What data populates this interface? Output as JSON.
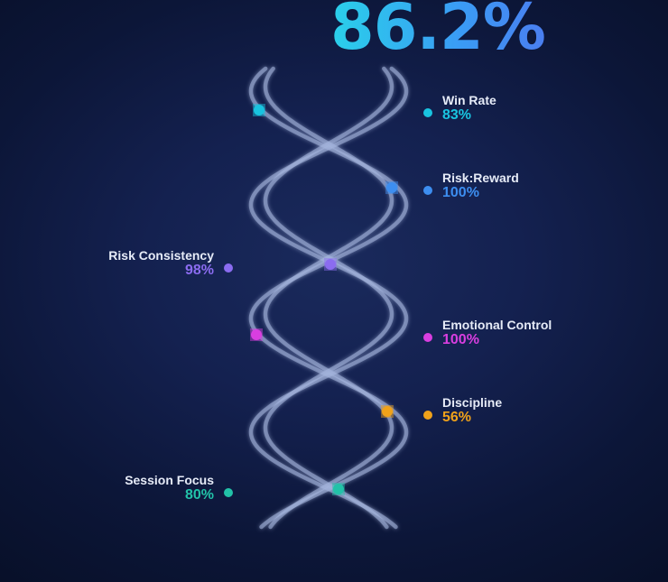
{
  "score": "86.2%",
  "metrics": [
    {
      "name": "Win Rate",
      "value": "83%",
      "color": "#19c4e0",
      "side": "right"
    },
    {
      "name": "Risk:Reward",
      "value": "100%",
      "color": "#3d8ef0",
      "side": "right"
    },
    {
      "name": "Risk Consistency",
      "value": "98%",
      "color": "#8b6cf0",
      "side": "left"
    },
    {
      "name": "Emotional Control",
      "value": "100%",
      "color": "#d93ee0",
      "side": "right"
    },
    {
      "name": "Discipline",
      "value": "56%",
      "color": "#f0a21a",
      "side": "right"
    },
    {
      "name": "Session Focus",
      "value": "80%",
      "color": "#22c2a8",
      "side": "left"
    }
  ]
}
